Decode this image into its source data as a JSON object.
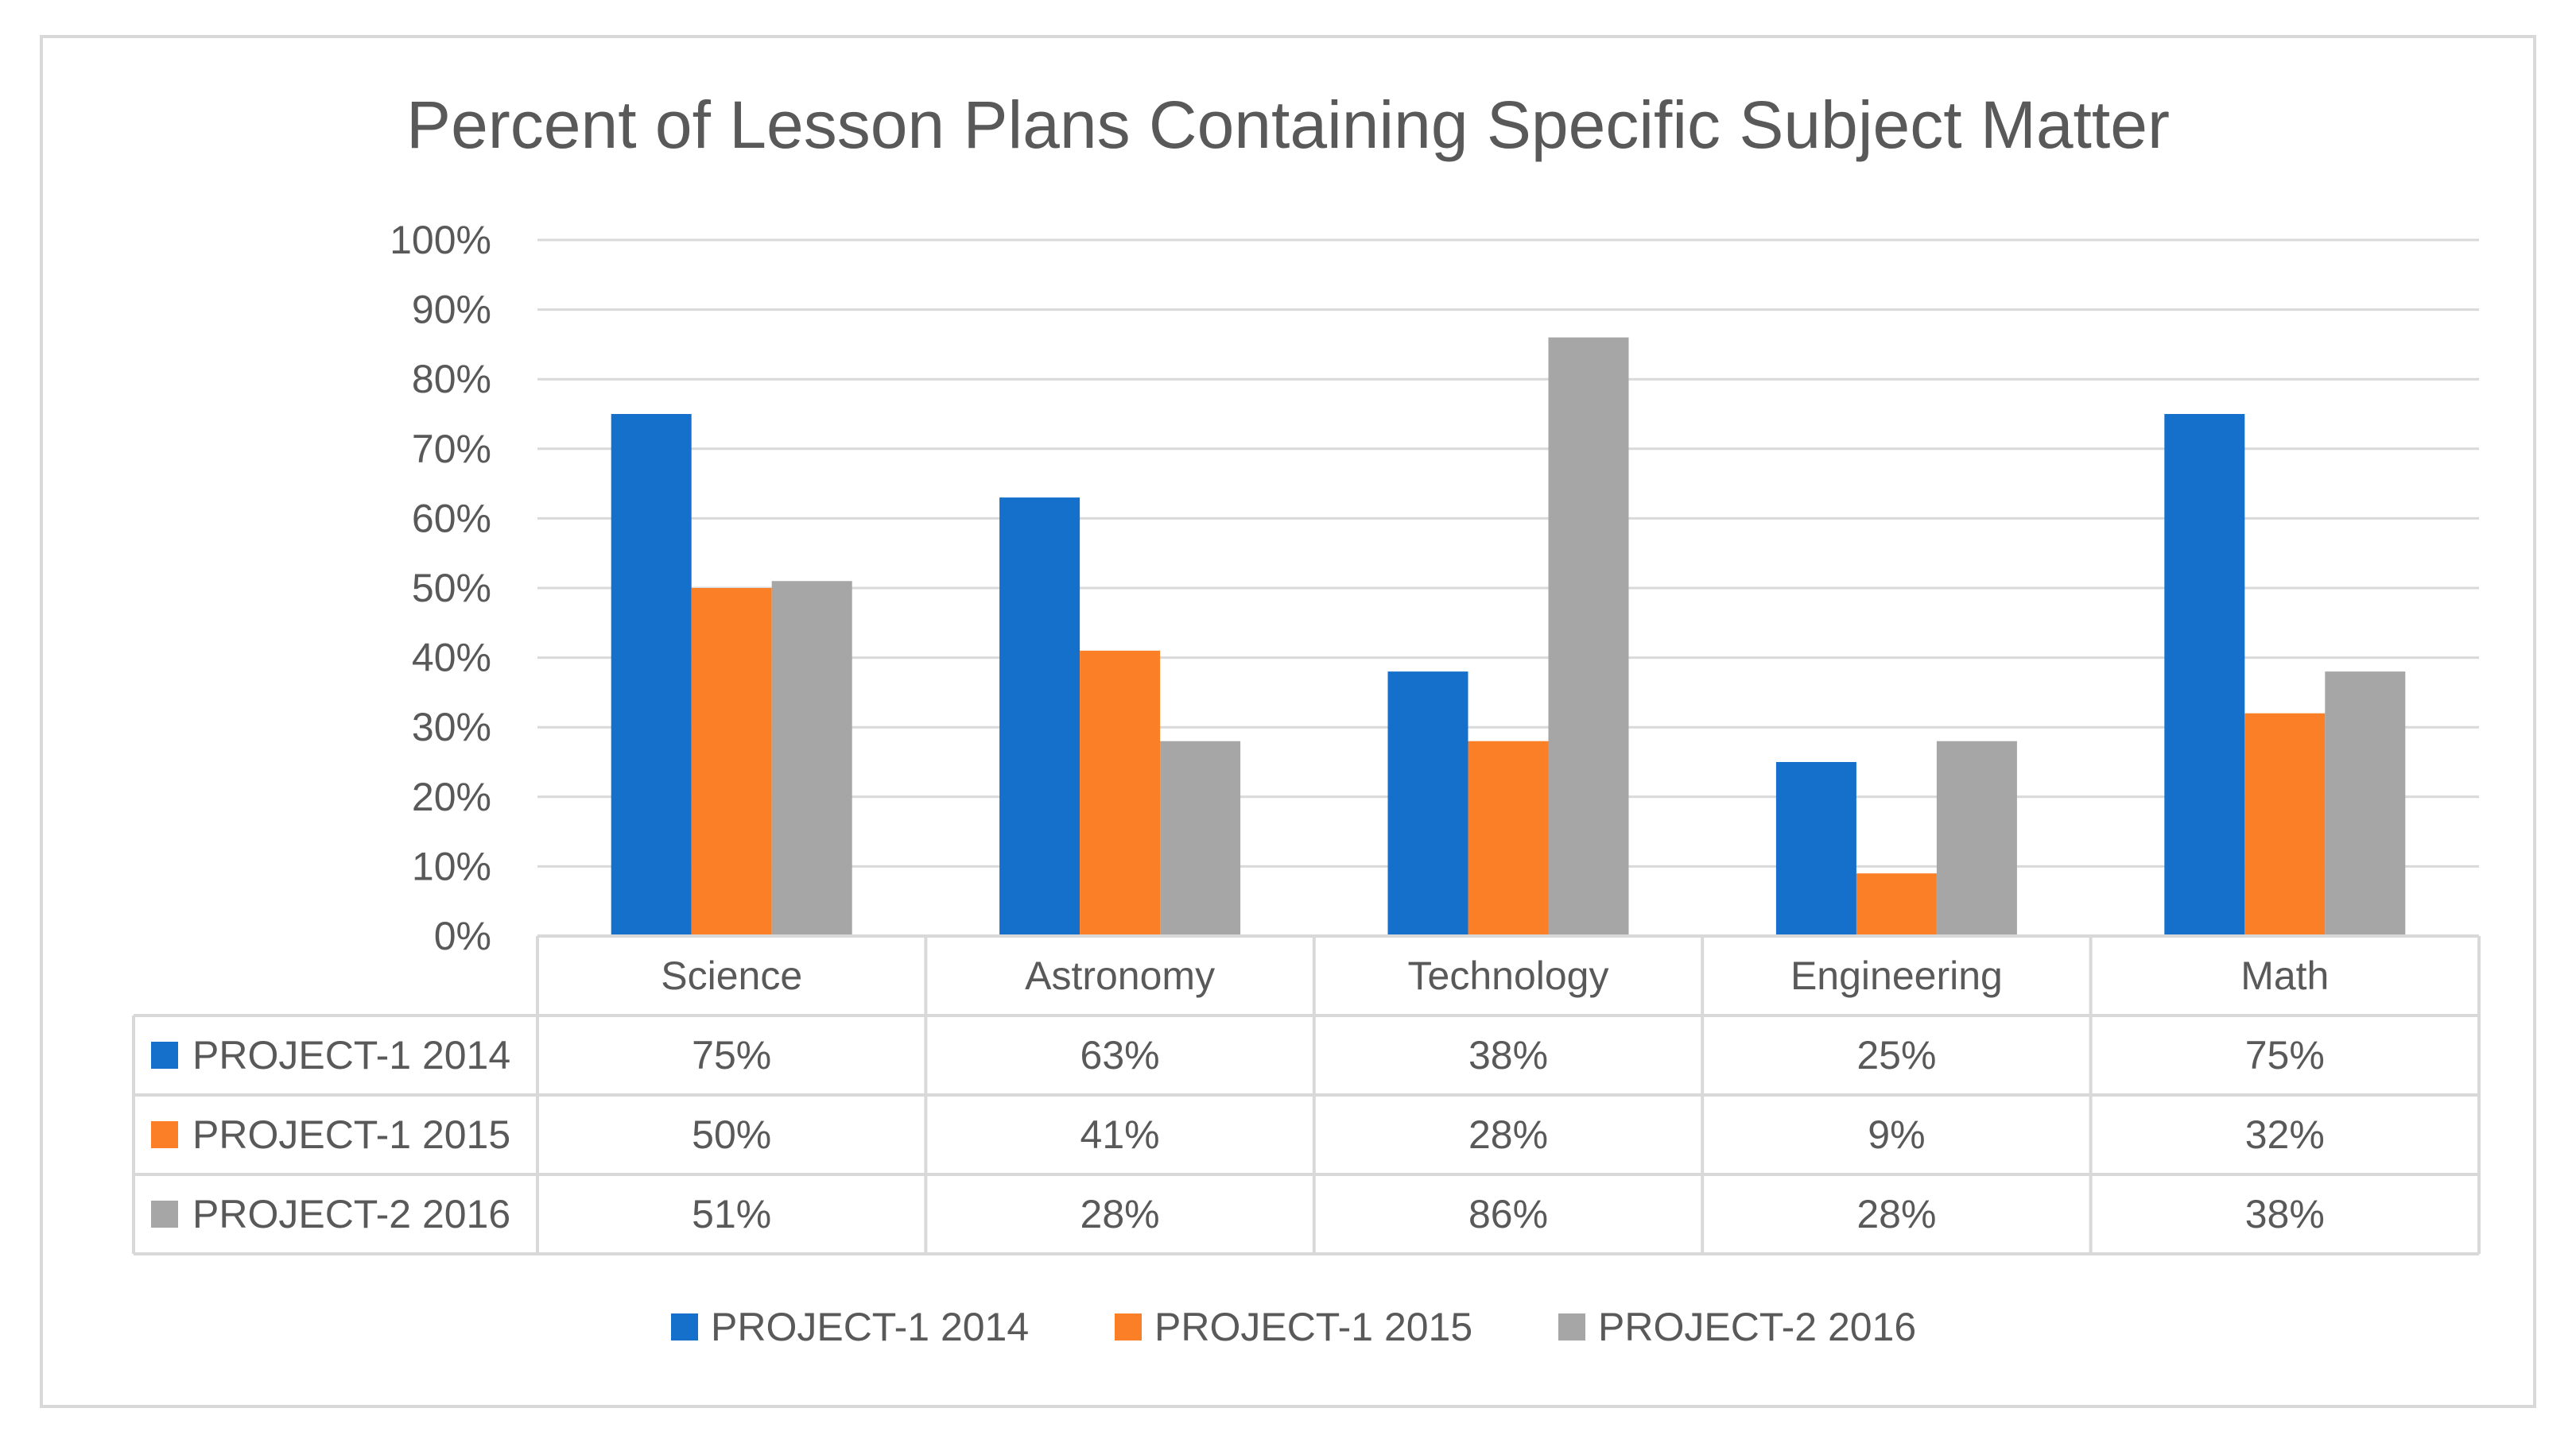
{
  "chart_data": {
    "type": "bar",
    "title": "Percent of Lesson Plans Containing Specific Subject Matter",
    "categories": [
      "Science",
      "Astronomy",
      "Technology",
      "Engineering",
      "Math"
    ],
    "series": [
      {
        "name": "PROJECT-1 2014",
        "color": "#1570cc",
        "values": [
          75,
          63,
          38,
          25,
          75
        ],
        "labels": [
          "75%",
          "63%",
          "38%",
          "25%",
          "75%"
        ]
      },
      {
        "name": "PROJECT-1 2015",
        "color": "#fb7f26",
        "values": [
          50,
          41,
          28,
          9,
          32
        ],
        "labels": [
          "50%",
          "41%",
          "28%",
          "9%",
          "32%"
        ]
      },
      {
        "name": "PROJECT-2 2016",
        "color": "#a6a6a6",
        "values": [
          51,
          28,
          86,
          28,
          38
        ],
        "labels": [
          "51%",
          "28%",
          "86%",
          "28%",
          "38%"
        ]
      }
    ],
    "ylim": [
      0,
      100
    ],
    "yticks": [
      "0%",
      "10%",
      "20%",
      "30%",
      "40%",
      "50%",
      "60%",
      "70%",
      "80%",
      "90%",
      "100%"
    ],
    "grid": true,
    "data_table": true,
    "legend": "bottom"
  }
}
